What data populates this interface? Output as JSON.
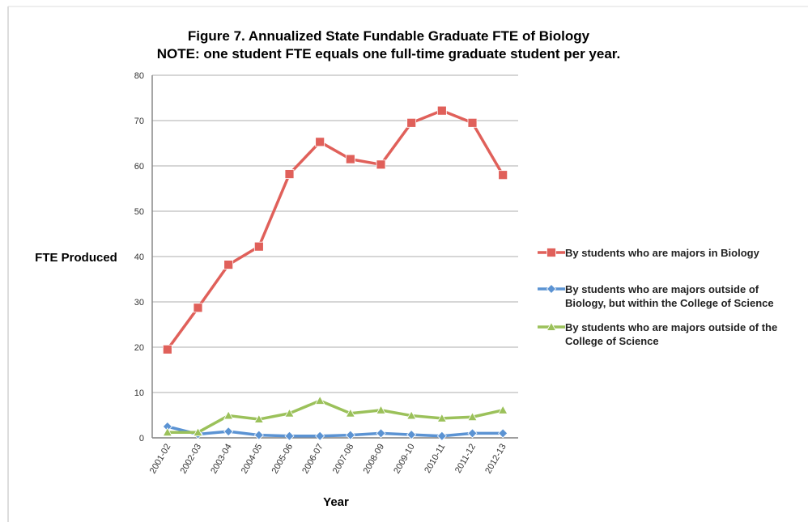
{
  "chart_data": {
    "type": "line",
    "title": "Figure 7. Annualized State Fundable Graduate FTE of Biology",
    "subtitle": "NOTE: one student FTE equals one full-time graduate student per year.",
    "x_label": "Year",
    "y_label": "FTE Produced",
    "categories": [
      "2001-02",
      "2002-03",
      "2003-04",
      "2004-05",
      "2005-06",
      "2006-07",
      "2007-08",
      "2008-09",
      "2009-10",
      "2010-11",
      "2011-12",
      "2012-13"
    ],
    "series": [
      {
        "name": "By students who are majors in Biology",
        "color": "#e0605a",
        "marker": "square",
        "values": [
          19.5,
          28.7,
          38.2,
          42.2,
          58.2,
          65.3,
          61.5,
          60.3,
          69.5,
          72.2,
          69.5,
          58.0
        ]
      },
      {
        "name": "By students who are majors outside of Biology, but within the College of Science",
        "color": "#5b93d3",
        "marker": "diamond",
        "values": [
          2.5,
          0.8,
          1.4,
          0.6,
          0.4,
          0.4,
          0.6,
          1.0,
          0.7,
          0.4,
          1.0,
          1.0
        ]
      },
      {
        "name": "By students who are majors outside of the College of Science",
        "color": "#9bc15a",
        "marker": "triangle",
        "values": [
          1.2,
          1.2,
          4.9,
          4.1,
          5.4,
          8.2,
          5.4,
          6.1,
          4.9,
          4.3,
          4.6,
          6.1
        ]
      }
    ],
    "ylim": [
      0,
      80
    ],
    "yticks": [
      0,
      10,
      20,
      30,
      40,
      50,
      60,
      70,
      80
    ],
    "grid": true,
    "legend": "right"
  }
}
